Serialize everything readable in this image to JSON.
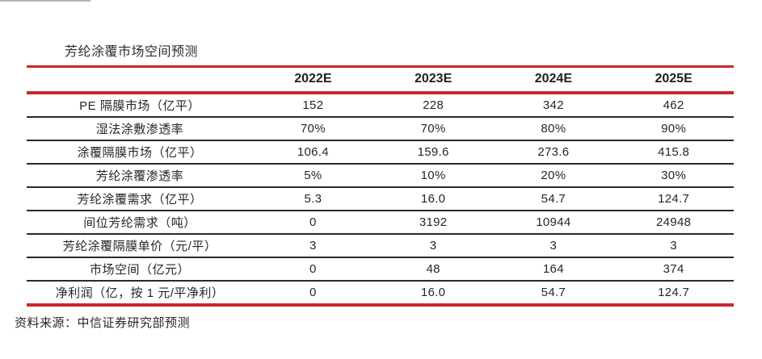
{
  "title": "芳纶涂覆市场空间预测",
  "source": "资料来源：中信证券研究部预测",
  "colors": {
    "accent_red": "#c9262c",
    "row_divider": "#2a2a2a",
    "text": "#262626",
    "background": "#ffffff"
  },
  "chart_data": {
    "type": "table",
    "title": "芳纶涂覆市场空间预测",
    "columns": [
      "",
      "2022E",
      "2023E",
      "2024E",
      "2025E"
    ],
    "rows": [
      {
        "label": "PE 隔膜市场（亿平）",
        "values": [
          "152",
          "228",
          "342",
          "462"
        ]
      },
      {
        "label": "湿法涂敷渗透率",
        "values": [
          "70%",
          "70%",
          "80%",
          "90%"
        ]
      },
      {
        "label": "涂覆隔膜市场（亿平）",
        "values": [
          "106.4",
          "159.6",
          "273.6",
          "415.8"
        ]
      },
      {
        "label": "芳纶涂覆渗透率",
        "values": [
          "5%",
          "10%",
          "20%",
          "30%"
        ]
      },
      {
        "label": "芳纶涂覆需求（亿平）",
        "values": [
          "5.3",
          "16.0",
          "54.7",
          "124.7"
        ]
      },
      {
        "label": "间位芳纶需求（吨）",
        "values": [
          "0",
          "3192",
          "10944",
          "24948"
        ]
      },
      {
        "label": "芳纶涂覆隔膜单价（元/平）",
        "values": [
          "3",
          "3",
          "3",
          "3"
        ]
      },
      {
        "label": "市场空间（亿元）",
        "values": [
          "0",
          "48",
          "164",
          "374"
        ]
      },
      {
        "label": "净利润（亿，按 1 元/平净利）",
        "values": [
          "0",
          "16.0",
          "54.7",
          "124.7"
        ]
      }
    ],
    "layout": {
      "header_line_color": "#c9262c",
      "bottom_line_color": "#c9262c",
      "row_line_color": "#2a2a2a",
      "label_align": "center",
      "value_align": "center"
    }
  }
}
